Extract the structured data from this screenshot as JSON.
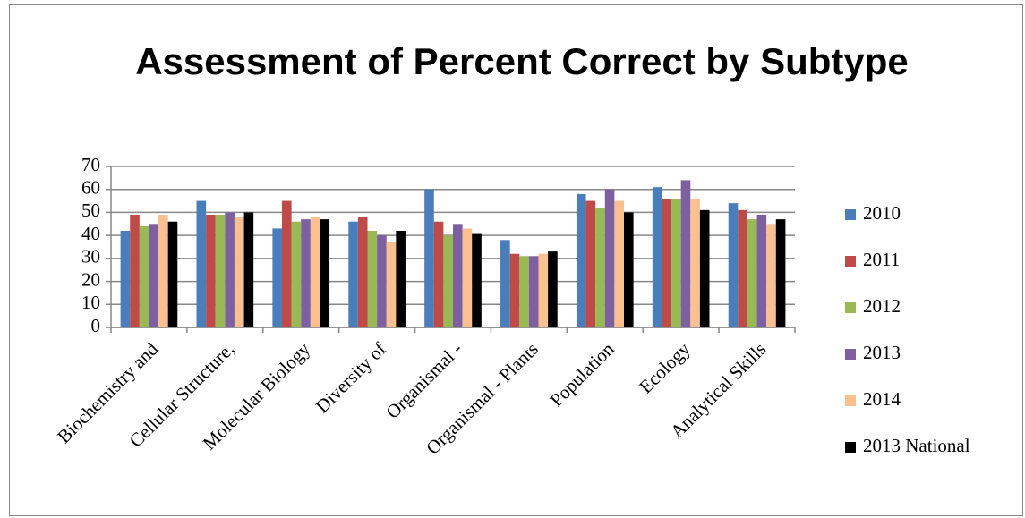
{
  "chart_data": {
    "type": "bar",
    "title": "Assessment of Percent Correct by Subtype",
    "categories": [
      "Biochemistry and",
      "Cellular Structure,",
      "Molecular Biology",
      "Diversity of",
      "Organismal -",
      "Organismal - Plants",
      "Population",
      "Ecology",
      "Analytical Skills"
    ],
    "series": [
      {
        "name": "2010",
        "color": "#4a7ebb",
        "values": [
          42,
          55,
          43,
          46,
          60,
          38,
          58,
          61,
          54
        ]
      },
      {
        "name": "2011",
        "color": "#be4b48",
        "values": [
          49,
          49,
          55,
          48,
          46,
          32,
          55,
          56,
          51
        ]
      },
      {
        "name": "2012",
        "color": "#98b954",
        "values": [
          44,
          49,
          46,
          42,
          40,
          31,
          52,
          56,
          47
        ]
      },
      {
        "name": "2013",
        "color": "#7d60a0",
        "values": [
          45,
          50,
          47,
          40,
          45,
          31,
          60,
          64,
          49
        ]
      },
      {
        "name": "2014",
        "color": "#fac090",
        "values": [
          49,
          48,
          48,
          37,
          43,
          32,
          55,
          56,
          45
        ]
      },
      {
        "name": "2013 National",
        "color": "#000000",
        "values": [
          46,
          50,
          47,
          42,
          41,
          33,
          50,
          51,
          47
        ]
      }
    ],
    "ylim": [
      0,
      70
    ],
    "yticks": [
      0,
      10,
      20,
      30,
      40,
      50,
      60,
      70
    ],
    "grid": true,
    "legend": "right"
  }
}
